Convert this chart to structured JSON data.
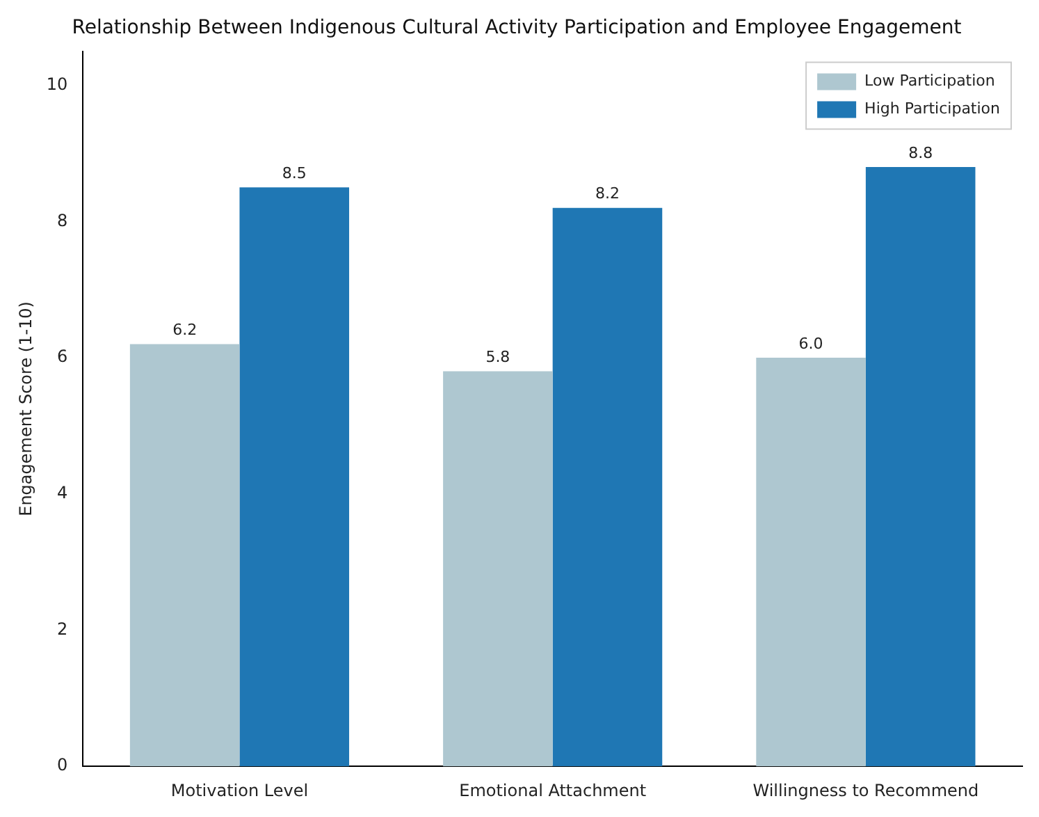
{
  "chart_data": {
    "type": "bar",
    "title": "Relationship Between Indigenous Cultural Activity Participation and Employee Engagement",
    "ylabel": "Engagement Score (1-10)",
    "categories": [
      "Motivation Level",
      "Emotional Attachment",
      "Willingness to Recommend"
    ],
    "series": [
      {
        "name": "Low Participation",
        "color": "#aec7d0",
        "values": [
          6.2,
          5.8,
          6.0
        ],
        "value_labels": [
          "6.2",
          "5.8",
          "6.0"
        ]
      },
      {
        "name": "High Participation",
        "color": "#1f77b4",
        "values": [
          8.5,
          8.2,
          8.8
        ],
        "value_labels": [
          "8.5",
          "8.2",
          "8.8"
        ]
      }
    ],
    "ylim": [
      0,
      10.5
    ],
    "yticks": [
      0,
      2,
      4,
      6,
      8,
      10
    ],
    "grid": false,
    "legend": "top right"
  }
}
